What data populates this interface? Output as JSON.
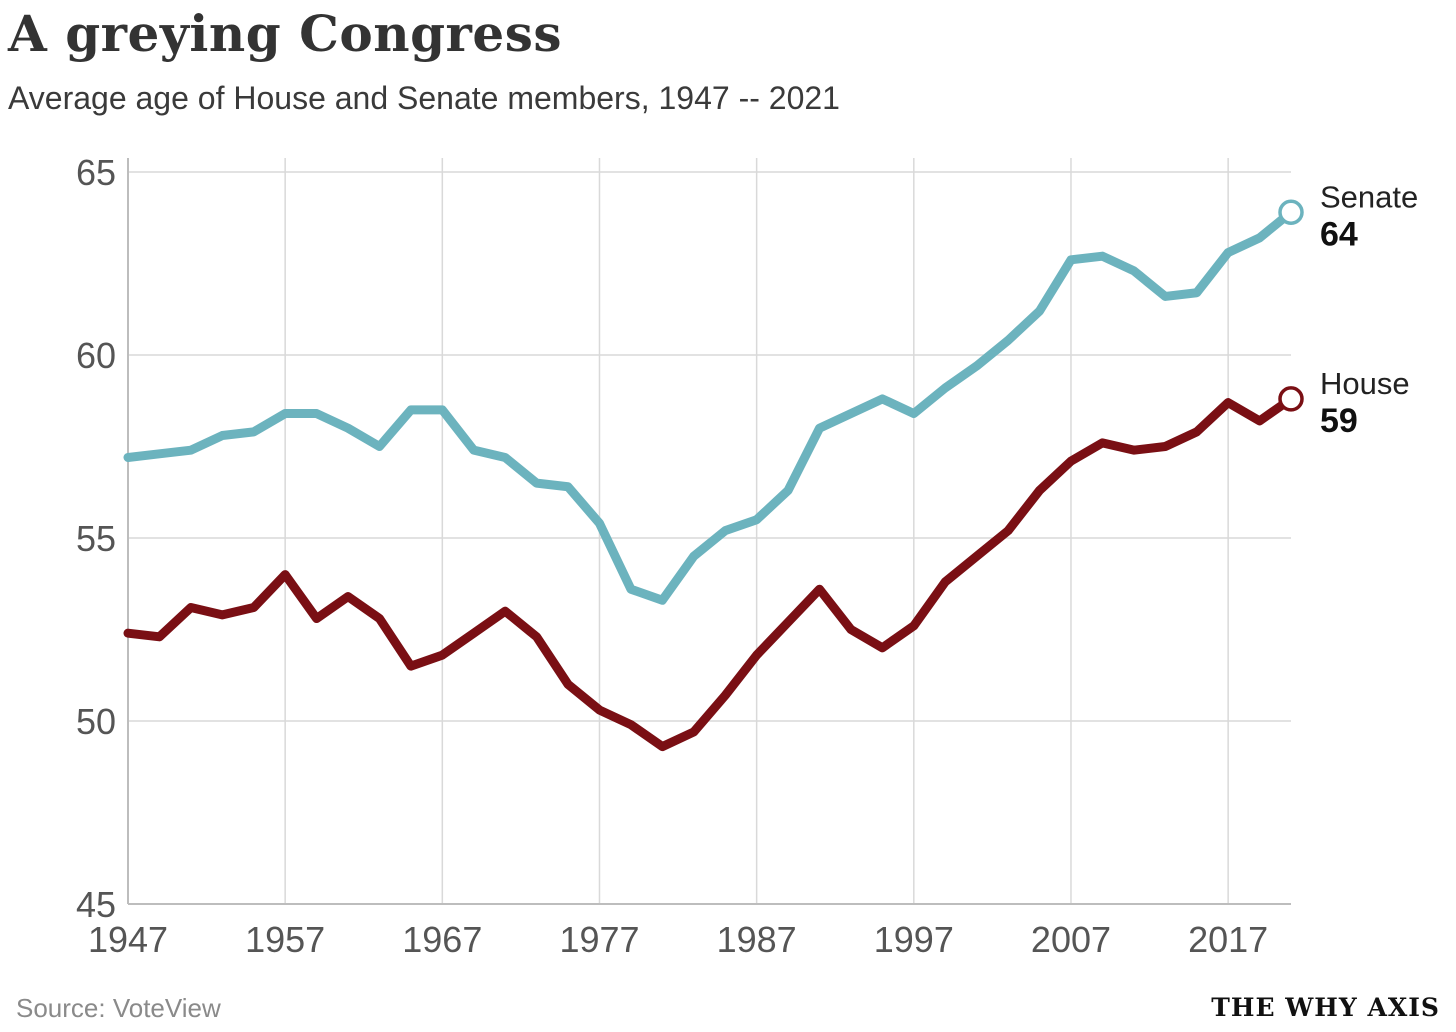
{
  "chart_data": {
    "type": "line",
    "title": "A greying Congress",
    "subtitle": "Average age of House and Senate members, 1947 -- 2021",
    "xlabel": "",
    "ylabel": "",
    "xlim": [
      1947,
      2021
    ],
    "ylim": [
      45,
      65
    ],
    "x_ticks": [
      1947,
      1957,
      1967,
      1977,
      1987,
      1997,
      2007,
      2017
    ],
    "y_ticks": [
      45,
      50,
      55,
      60,
      65
    ],
    "grid": true,
    "x": [
      1947,
      1949,
      1951,
      1953,
      1955,
      1957,
      1959,
      1961,
      1963,
      1965,
      1967,
      1969,
      1971,
      1973,
      1975,
      1977,
      1979,
      1981,
      1983,
      1985,
      1987,
      1989,
      1991,
      1993,
      1995,
      1997,
      1999,
      2001,
      2003,
      2005,
      2007,
      2009,
      2011,
      2013,
      2015,
      2017,
      2019,
      2021
    ],
    "series": [
      {
        "name": "Senate",
        "label_value": "64",
        "color": "#6cb3be",
        "values": [
          57.2,
          57.3,
          57.4,
          57.8,
          57.9,
          58.4,
          58.4,
          58.0,
          57.5,
          58.5,
          58.5,
          57.4,
          57.2,
          56.5,
          56.4,
          55.4,
          53.6,
          53.3,
          54.5,
          55.2,
          55.5,
          56.3,
          58.0,
          58.4,
          58.8,
          58.4,
          59.1,
          59.7,
          60.4,
          61.2,
          62.6,
          62.7,
          62.3,
          61.6,
          61.7,
          62.8,
          63.2,
          63.9
        ]
      },
      {
        "name": "House",
        "label_value": "59",
        "color": "#7a0f14",
        "values": [
          52.4,
          52.3,
          53.1,
          52.9,
          53.1,
          54.0,
          52.8,
          53.4,
          52.8,
          51.5,
          51.8,
          52.4,
          53.0,
          52.3,
          51.0,
          50.3,
          49.9,
          49.3,
          49.7,
          50.7,
          51.8,
          52.7,
          53.6,
          52.5,
          52.0,
          52.6,
          53.8,
          54.5,
          55.2,
          56.3,
          57.1,
          57.6,
          57.4,
          57.5,
          57.9,
          58.7,
          58.2,
          58.8
        ]
      }
    ]
  },
  "footer": {
    "source": "Source: VoteView",
    "brand": "THE WHY AXIS"
  }
}
